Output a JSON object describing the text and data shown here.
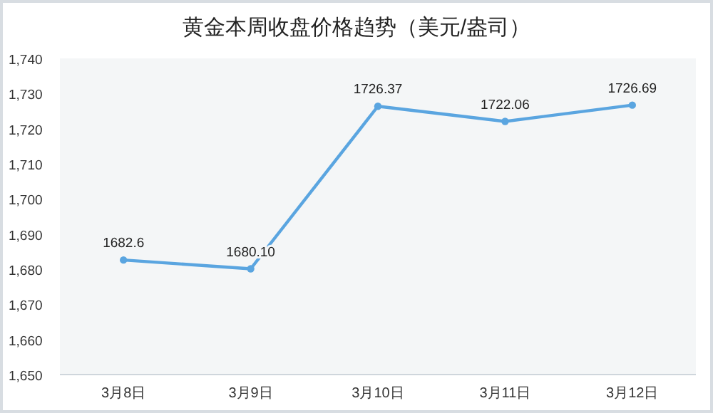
{
  "chart_data": {
    "type": "line",
    "title": "黄金本周收盘价格趋势（美元/盎司）",
    "categories": [
      "3月8日",
      "3月9日",
      "3月10日",
      "3月11日",
      "3月12日"
    ],
    "series": [
      {
        "color": "#5aa5e0",
        "values": [
          1682.6,
          1680.1,
          1726.37,
          1722.06,
          1726.69
        ],
        "value_labels": [
          "1682.6",
          "1680.10",
          "1726.37",
          "1722.06",
          "1726.69"
        ]
      }
    ],
    "ylim": [
      1650,
      1740
    ],
    "yticks": [
      {
        "value": 1650,
        "label": "1,650"
      },
      {
        "value": 1660,
        "label": "1,660"
      },
      {
        "value": 1670,
        "label": "1,670"
      },
      {
        "value": 1680,
        "label": "1,680"
      },
      {
        "value": 1690,
        "label": "1,690"
      },
      {
        "value": 1700,
        "label": "1,700"
      },
      {
        "value": 1710,
        "label": "1,710"
      },
      {
        "value": 1720,
        "label": "1,720"
      },
      {
        "value": 1730,
        "label": "1,730"
      },
      {
        "value": 1740,
        "label": "1,740"
      }
    ],
    "grid": false,
    "marker": "circle",
    "line_style": "solid"
  }
}
